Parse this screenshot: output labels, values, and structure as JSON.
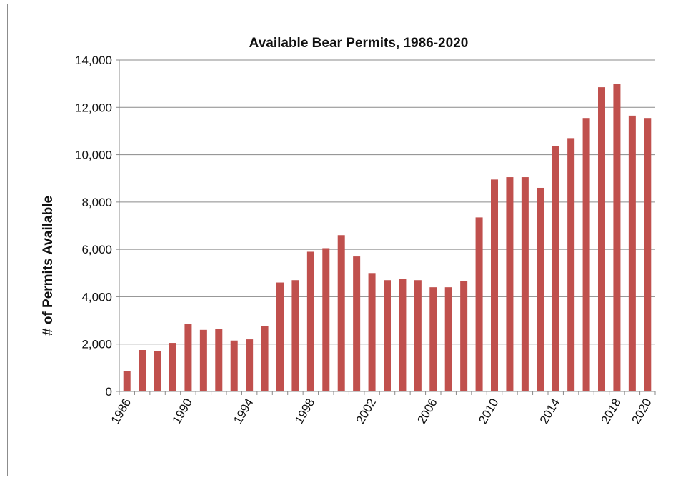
{
  "chart_data": {
    "type": "bar",
    "title": "Available Bear Permits, 1986-2020",
    "ylabel": "# of Permits Available",
    "xlabel": "",
    "ylim": [
      0,
      14000
    ],
    "yticks": [
      0,
      2000,
      4000,
      6000,
      8000,
      10000,
      12000,
      14000
    ],
    "ytick_labels": [
      "0",
      "2,000",
      "4,000",
      "6,000",
      "8,000",
      "10,000",
      "12,000",
      "14,000"
    ],
    "xtick_labels": [
      "1986",
      "1990",
      "1994",
      "1998",
      "2002",
      "2006",
      "2010",
      "2014",
      "2018",
      "2020"
    ],
    "grid": true,
    "bar_color": "#c0504d",
    "categories": [
      "1986",
      "1987",
      "1988",
      "1989",
      "1990",
      "1991",
      "1992",
      "1993",
      "1994",
      "1995",
      "1996",
      "1997",
      "1998",
      "1999",
      "2000",
      "2001",
      "2002",
      "2003",
      "2004",
      "2005",
      "2006",
      "2007",
      "2008",
      "2009",
      "2010",
      "2011",
      "2012",
      "2013",
      "2014",
      "2015",
      "2016",
      "2017",
      "2018",
      "2019",
      "2020"
    ],
    "values": [
      850,
      1750,
      1700,
      2050,
      2850,
      2600,
      2650,
      2150,
      2200,
      2750,
      4600,
      4700,
      5900,
      6050,
      6600,
      5700,
      5000,
      4700,
      4750,
      4700,
      4400,
      4400,
      4650,
      7350,
      8950,
      9050,
      9050,
      8600,
      10350,
      10700,
      11550,
      12850,
      13000,
      11650,
      11550
    ]
  }
}
